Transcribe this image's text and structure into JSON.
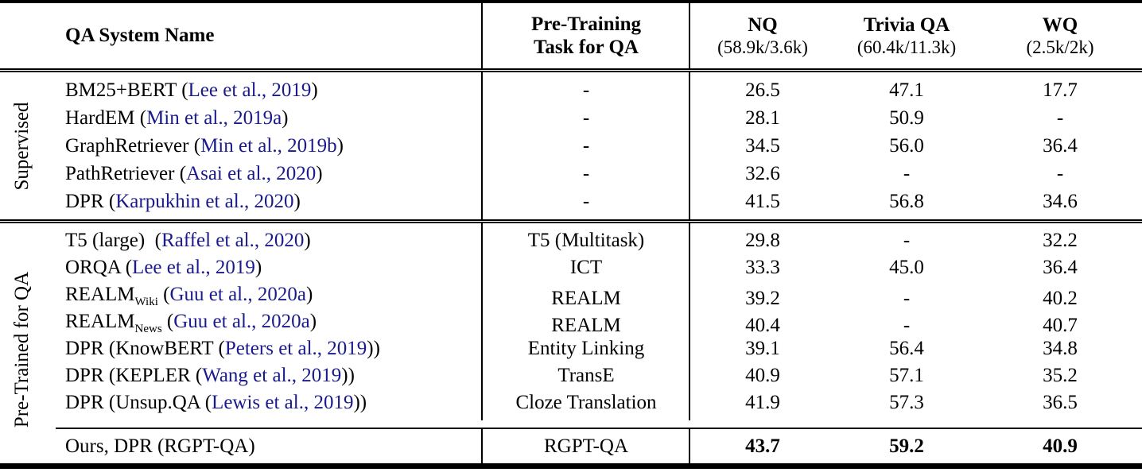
{
  "table": {
    "header": {
      "col_name": "QA System Name",
      "col_pretrain_line1": "Pre-Training",
      "col_pretrain_line2": "Task for QA",
      "cols": [
        {
          "title": "NQ",
          "counts": "(58.9k/3.6k)"
        },
        {
          "title": "Trivia QA",
          "counts": "(60.4k/11.3k)"
        },
        {
          "title": "WQ",
          "counts": "(2.5k/2k)"
        }
      ]
    },
    "groups": [
      {
        "label": "Supervised",
        "rows": [
          {
            "name_parts": [
              {
                "t": "BM25+BERT ("
              },
              {
                "t": "Lee et al., 2019",
                "cite": true
              },
              {
                "t": ")"
              }
            ],
            "pretrain": "-",
            "values": [
              "26.5",
              "47.1",
              "17.7"
            ]
          },
          {
            "name_parts": [
              {
                "t": "HardEM ("
              },
              {
                "t": "Min et al., 2019a",
                "cite": true
              },
              {
                "t": ")"
              }
            ],
            "pretrain": "-",
            "values": [
              "28.1",
              "50.9",
              "-"
            ]
          },
          {
            "name_parts": [
              {
                "t": "GraphRetriever ("
              },
              {
                "t": "Min et al., 2019b",
                "cite": true
              },
              {
                "t": ")"
              }
            ],
            "pretrain": "-",
            "values": [
              "34.5",
              "56.0",
              "36.4"
            ]
          },
          {
            "name_parts": [
              {
                "t": "PathRetriever ("
              },
              {
                "t": "Asai et al., 2020",
                "cite": true
              },
              {
                "t": ")"
              }
            ],
            "pretrain": "-",
            "values": [
              "32.6",
              "-",
              "-"
            ]
          },
          {
            "name_parts": [
              {
                "t": "DPR ("
              },
              {
                "t": "Karpukhin et al., 2020",
                "cite": true
              },
              {
                "t": ")"
              }
            ],
            "pretrain": "-",
            "values": [
              "41.5",
              "56.8",
              "34.6"
            ]
          }
        ]
      },
      {
        "label": "Pre-Trained for QA",
        "rows": [
          {
            "name_parts": [
              {
                "t": "T5 (large)  ("
              },
              {
                "t": "Raffel et al., 2020",
                "cite": true
              },
              {
                "t": ")"
              }
            ],
            "pretrain": "T5 (Multitask)",
            "values": [
              "29.8",
              "-",
              "32.2"
            ]
          },
          {
            "name_parts": [
              {
                "t": "ORQA ("
              },
              {
                "t": "Lee et al., 2019",
                "cite": true
              },
              {
                "t": ")"
              }
            ],
            "pretrain": "ICT",
            "values": [
              "33.3",
              "45.0",
              "36.4"
            ]
          },
          {
            "name_parts": [
              {
                "t": "REALM"
              },
              {
                "t": "Wiki",
                "sub": true
              },
              {
                "t": " ("
              },
              {
                "t": "Guu et al., 2020a",
                "cite": true
              },
              {
                "t": ")"
              }
            ],
            "pretrain": "REALM",
            "values": [
              "39.2",
              "-",
              "40.2"
            ]
          },
          {
            "name_parts": [
              {
                "t": "REALM"
              },
              {
                "t": "News",
                "sub": true
              },
              {
                "t": " ("
              },
              {
                "t": "Guu et al., 2020a",
                "cite": true
              },
              {
                "t": ")"
              }
            ],
            "pretrain": "REALM",
            "values": [
              "40.4",
              "-",
              "40.7"
            ]
          },
          {
            "name_parts": [
              {
                "t": "DPR (KnowBERT ("
              },
              {
                "t": "Peters et al., 2019",
                "cite": true
              },
              {
                "t": "))"
              }
            ],
            "pretrain": "Entity Linking",
            "values": [
              "39.1",
              "56.4",
              "34.8"
            ]
          },
          {
            "name_parts": [
              {
                "t": "DPR (KEPLER ("
              },
              {
                "t": "Wang et al., 2019",
                "cite": true
              },
              {
                "t": "))"
              }
            ],
            "pretrain": "TransE",
            "values": [
              "40.9",
              "57.1",
              "35.2"
            ]
          },
          {
            "name_parts": [
              {
                "t": "DPR (Unsup.QA ("
              },
              {
                "t": "Lewis et al., 2019",
                "cite": true
              },
              {
                "t": "))"
              }
            ],
            "pretrain": "Cloze Translation",
            "values": [
              "41.9",
              "57.3",
              "36.5"
            ]
          }
        ]
      }
    ],
    "ours_row": {
      "name_parts": [
        {
          "t": "Ours, DPR (RGPT-QA)"
        }
      ],
      "pretrain": "RGPT-QA",
      "values": [
        "43.7",
        "59.2",
        "40.9"
      ],
      "bold_values": true
    }
  },
  "colors": {
    "citation": "#1a1a8c",
    "text": "#000000",
    "rule": "#000000"
  }
}
